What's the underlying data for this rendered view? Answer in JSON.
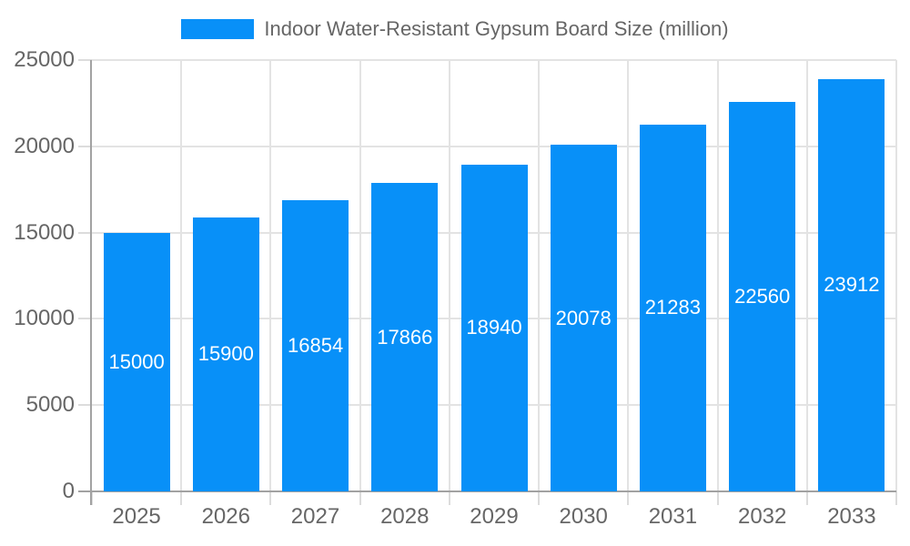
{
  "chart_data": {
    "type": "bar",
    "title": "Indoor Water-Resistant Gypsum Board Size (million)",
    "categories": [
      "2025",
      "2026",
      "2027",
      "2028",
      "2029",
      "2030",
      "2031",
      "2032",
      "2033"
    ],
    "values": [
      15000,
      15900,
      16854,
      17866,
      18940,
      20078,
      21283,
      22560,
      23912
    ],
    "value_labels": [
      "15000",
      "15900",
      "16854",
      "17866",
      "18940",
      "20078",
      "21283",
      "22560",
      "23912"
    ],
    "xlabel": "",
    "ylabel": "",
    "ylim": [
      0,
      25000
    ],
    "yticks": [
      0,
      5000,
      10000,
      15000,
      20000,
      25000
    ],
    "ytick_labels": [
      "0",
      "5000",
      "10000",
      "15000",
      "20000",
      "25000"
    ],
    "grid": true,
    "legend_position": "top",
    "value_labels_position": "center-inside"
  },
  "legend": {
    "label": "Indoor Water-Resistant Gypsum Board Size (million)",
    "swatch_icon": "blue-rect-swatch"
  },
  "colors": {
    "bar": "#0890F8",
    "bar_value_text": "#FFFFFF",
    "axis_text": "#666666",
    "legend_text": "#666666",
    "grid_line": "#E3E3E3",
    "tick_mark": "#DCDCDC",
    "axis_line": "#A2A2A2",
    "background": "#FFFFFF"
  }
}
